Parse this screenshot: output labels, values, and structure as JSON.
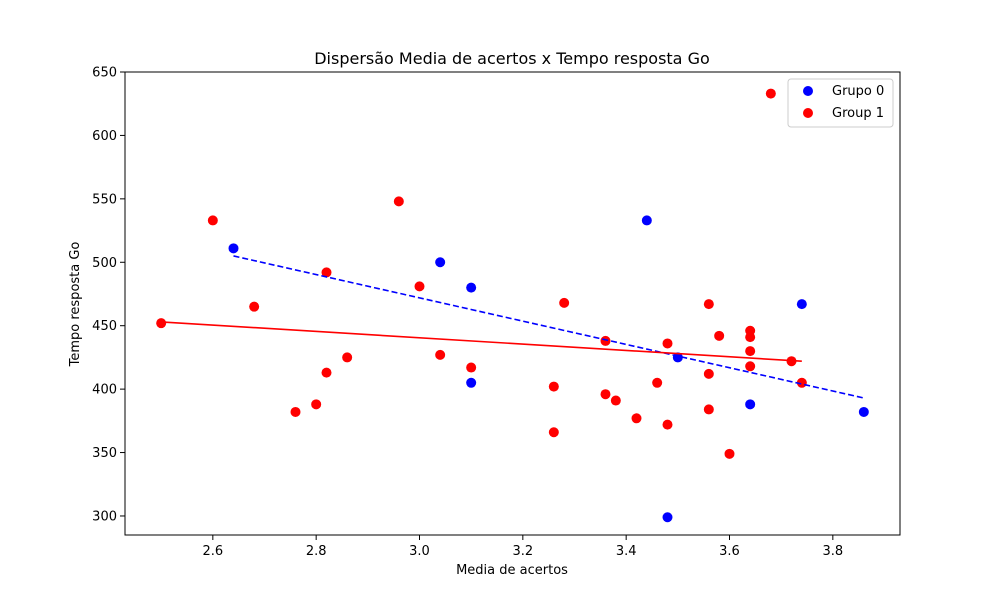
{
  "chart_data": {
    "type": "scatter",
    "title": "Dispersão Media de acertos x Tempo resposta Go",
    "xlabel": "Media de acertos",
    "ylabel": "Tempo resposta Go",
    "xlim": [
      2.43,
      3.93
    ],
    "ylim": [
      285,
      650
    ],
    "xticks": [
      "2.6",
      "2.8",
      "3.0",
      "3.2",
      "3.4",
      "3.6",
      "3.8"
    ],
    "yticks": [
      "300",
      "350",
      "400",
      "450",
      "500",
      "550",
      "600",
      "650"
    ],
    "grid": false,
    "legend_position": "top-right",
    "series": [
      {
        "name": "Grupo 0",
        "color": "#0000ff",
        "points": [
          [
            2.64,
            511
          ],
          [
            3.04,
            500
          ],
          [
            3.1,
            480
          ],
          [
            3.1,
            405
          ],
          [
            3.44,
            533
          ],
          [
            3.48,
            299
          ],
          [
            3.5,
            425
          ],
          [
            3.64,
            388
          ],
          [
            3.74,
            467
          ],
          [
            3.86,
            382
          ]
        ],
        "fit": {
          "style": "dashed",
          "x": [
            2.64,
            3.86
          ],
          "y": [
            505,
            393
          ]
        }
      },
      {
        "name": "Group 1",
        "color": "#ff0000",
        "points": [
          [
            2.5,
            452
          ],
          [
            2.6,
            533
          ],
          [
            2.68,
            465
          ],
          [
            2.76,
            382
          ],
          [
            2.8,
            388
          ],
          [
            2.82,
            492
          ],
          [
            2.82,
            413
          ],
          [
            2.86,
            425
          ],
          [
            2.96,
            548
          ],
          [
            3.0,
            481
          ],
          [
            3.04,
            427
          ],
          [
            3.1,
            417
          ],
          [
            3.26,
            402
          ],
          [
            3.26,
            366
          ],
          [
            3.28,
            468
          ],
          [
            3.36,
            438
          ],
          [
            3.36,
            396
          ],
          [
            3.38,
            391
          ],
          [
            3.42,
            377
          ],
          [
            3.46,
            405
          ],
          [
            3.48,
            436
          ],
          [
            3.48,
            372
          ],
          [
            3.56,
            467
          ],
          [
            3.56,
            412
          ],
          [
            3.56,
            384
          ],
          [
            3.58,
            442
          ],
          [
            3.6,
            349
          ],
          [
            3.64,
            446
          ],
          [
            3.64,
            441
          ],
          [
            3.64,
            430
          ],
          [
            3.64,
            418
          ],
          [
            3.68,
            633
          ],
          [
            3.72,
            422
          ],
          [
            3.74,
            405
          ]
        ],
        "fit": {
          "style": "solid",
          "x": [
            2.5,
            3.74
          ],
          "y": [
            453,
            422
          ]
        }
      }
    ]
  }
}
